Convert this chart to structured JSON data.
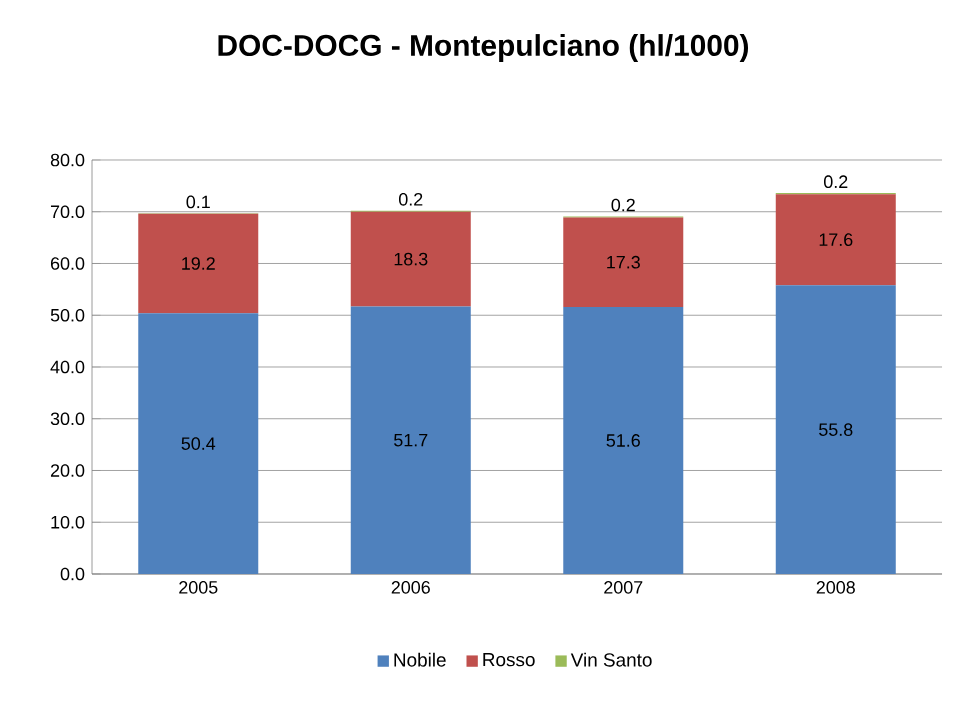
{
  "chart_data": {
    "type": "bar",
    "title": "DOC-DOCG - Montepulciano  (hl/1000)",
    "categories": [
      "2005",
      "2006",
      "2007",
      "2008"
    ],
    "stacked": true,
    "series": [
      {
        "name": "Nobile",
        "color": "#4f81bd",
        "values": [
          50.4,
          51.7,
          51.6,
          55.8
        ]
      },
      {
        "name": "Rosso",
        "color": "#c0504d",
        "values": [
          19.2,
          18.3,
          17.3,
          17.6
        ]
      },
      {
        "name": "Vin Santo",
        "color": "#9bbb59",
        "values": [
          0.1,
          0.2,
          0.2,
          0.2
        ]
      }
    ],
    "ylim": [
      0,
      80
    ],
    "yticks": [
      {
        "value": 0,
        "label": "0.0"
      },
      {
        "value": 10,
        "label": "10.0"
      },
      {
        "value": 20,
        "label": "20.0"
      },
      {
        "value": 30,
        "label": "30.0"
      },
      {
        "value": 40,
        "label": "40.0"
      },
      {
        "value": 50,
        "label": "50.0"
      },
      {
        "value": 60,
        "label": "60.0"
      },
      {
        "value": 70,
        "label": "70.0"
      },
      {
        "value": 80,
        "label": "80.0"
      }
    ],
    "grid": "y",
    "legend": "bottom",
    "data_labels": true
  }
}
